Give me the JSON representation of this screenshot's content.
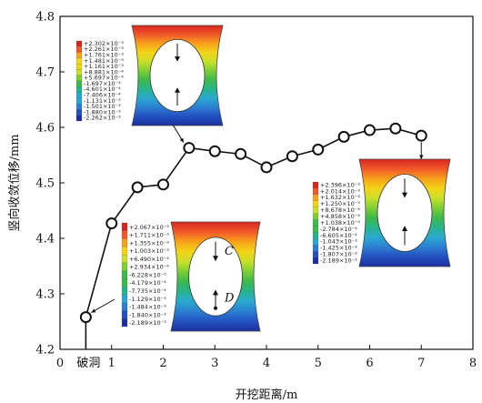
{
  "chart_data": {
    "type": "line",
    "xlabel": "开挖距离/m",
    "ylabel": "竖向收敛位移/mm",
    "xlim": [
      0,
      8
    ],
    "ylim": [
      4.2,
      4.8
    ],
    "x_ticks": [
      "0",
      "1",
      "2",
      "3",
      "4",
      "5",
      "6",
      "7",
      "8"
    ],
    "y_ticks": [
      "4.2",
      "4.3",
      "4.4",
      "4.5",
      "4.6",
      "4.7",
      "4.8"
    ],
    "x_special_label": "破洞",
    "grid": false,
    "series": [
      {
        "x": [
          0.5,
          1.0,
          1.5,
          2.0,
          2.5,
          3.0,
          3.5,
          4.0,
          4.5,
          5.0,
          5.5,
          6.0,
          6.5,
          7.0
        ],
        "y": [
          4.258,
          4.427,
          4.492,
          4.497,
          4.563,
          4.557,
          4.552,
          4.528,
          4.548,
          4.56,
          4.583,
          4.595,
          4.598,
          4.585
        ]
      }
    ],
    "insets": [
      {
        "legend": [
          "+2.302×10⁻³",
          "+2.261×10⁻³",
          "+1.761×10⁻³",
          "+1.481×10⁻³",
          "+1.161×10⁻³",
          "+8.881×10⁻⁴",
          "+5.697×10⁻⁴",
          "-1.697×10⁻⁴",
          "-4.601×10⁻⁴",
          "-7.406×10⁻⁴",
          "-1.131×10⁻³",
          "-1.501×10⁻³",
          "-1.880×10⁻³",
          "-2.262×10⁻³"
        ]
      },
      {
        "legend": [
          "+2.067×10⁻³",
          "+1.711×10⁻³",
          "+1.355×10⁻³",
          "+1.003×10⁻³",
          "+6.490×10⁻⁴",
          "+2.934×10⁻⁴",
          "-6.228×10⁻⁵",
          "-4.179×10⁻⁴",
          "-7.735×10⁻⁴",
          "-1.129×10⁻³",
          "-1.484×10⁻³",
          "-1.840×10⁻³",
          "-2.189×10⁻³"
        ],
        "labels": [
          "C",
          "D"
        ]
      },
      {
        "legend": [
          "+2.396×10⁻³",
          "+2.014×10⁻³",
          "+1.632×10⁻³",
          "+1.250×10⁻³",
          "+8.678×10⁻⁴",
          "+4.858×10⁻⁴",
          "+1.038×10⁻⁴",
          "-2.784×10⁻⁴",
          "-6.605×10⁻⁴",
          "-1.043×10⁻³",
          "-1.425×10⁻³",
          "-1.807×10⁻³",
          "-2.189×10⁻³"
        ]
      }
    ],
    "colors": {
      "line": "#111111",
      "marker_fill": "#ffffff",
      "contour": [
        "#d8261f",
        "#f1592a",
        "#f7a21b",
        "#f3d417",
        "#c8e02a",
        "#7ccf35",
        "#3dba4a",
        "#26b48c",
        "#2aa9d0",
        "#2a7fd0",
        "#2450c0",
        "#1b2f9e"
      ]
    }
  }
}
